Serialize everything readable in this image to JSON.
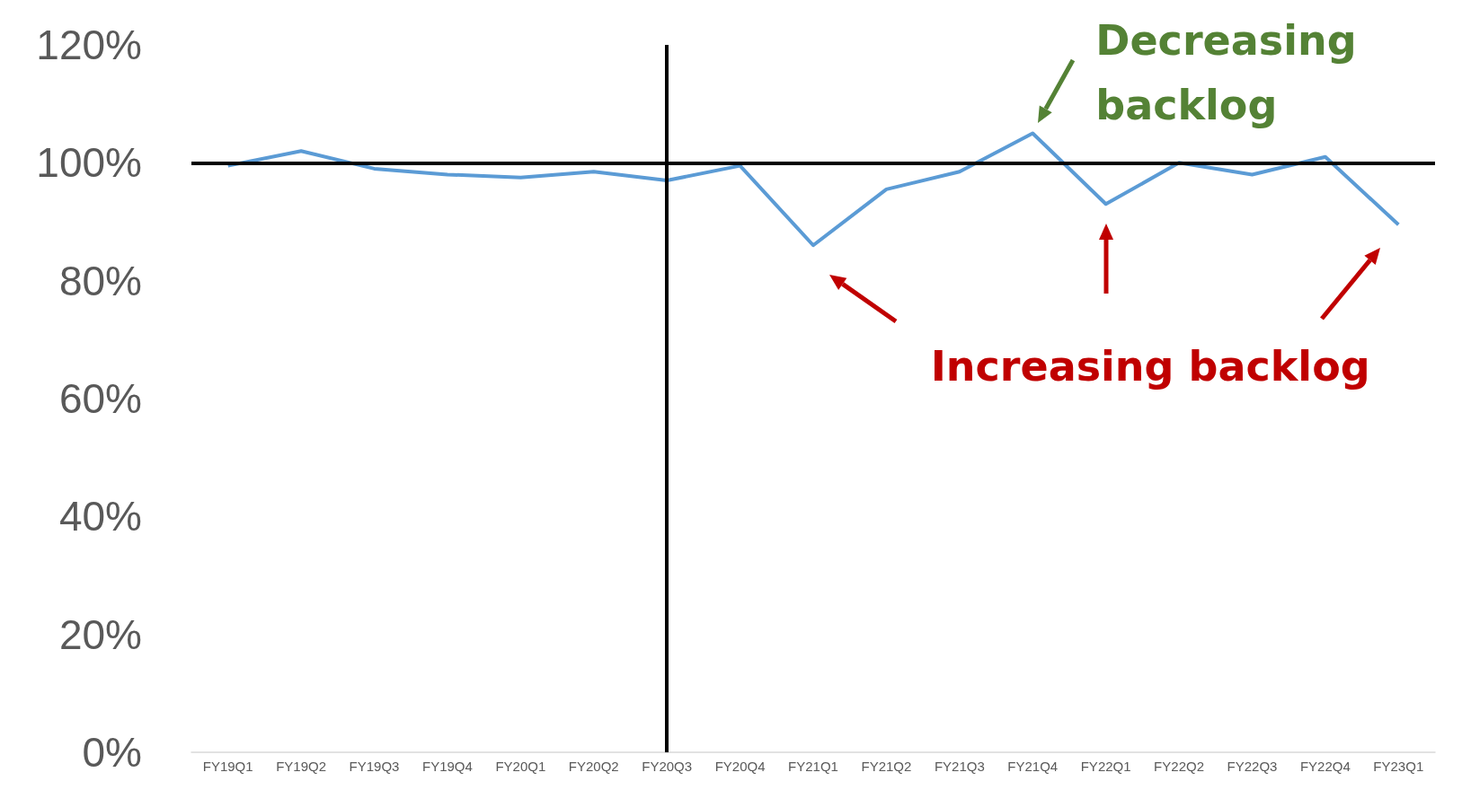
{
  "chart_data": {
    "type": "line",
    "categories": [
      "FY19Q1",
      "FY19Q2",
      "FY19Q3",
      "FY19Q4",
      "FY20Q1",
      "FY20Q2",
      "FY20Q3",
      "FY20Q4",
      "FY21Q1",
      "FY21Q2",
      "FY21Q3",
      "FY21Q4",
      "FY22Q1",
      "FY22Q2",
      "FY22Q3",
      "FY22Q4",
      "FY23Q1"
    ],
    "series": [
      {
        "color": "#5b9bd5",
        "values": [
          99.5,
          102,
          99,
          98,
          97.5,
          98.5,
          97,
          99.5,
          86,
          95.5,
          98.5,
          105,
          93,
          100,
          98,
          101,
          89.5
        ]
      }
    ],
    "ylim": [
      0,
      120
    ],
    "yticks": [
      {
        "value": 0,
        "label": "0%"
      },
      {
        "value": 20,
        "label": "20%"
      },
      {
        "value": 40,
        "label": "40%"
      },
      {
        "value": 60,
        "label": "60%"
      },
      {
        "value": 80,
        "label": "80%"
      },
      {
        "value": 100,
        "label": "100%"
      },
      {
        "value": 120,
        "label": "120%"
      }
    ],
    "ref_lines": [
      {
        "axis": "y",
        "value": 100,
        "color": "#000000"
      },
      {
        "axis": "x",
        "value": "FY20Q3",
        "color": "#000000"
      }
    ],
    "annotations": [
      {
        "text": "Decreasing backlog",
        "x": "FY21Q4",
        "y": 105
      },
      "Increasing backlog"
    ],
    "marker": "none",
    "grid": false
  }
}
